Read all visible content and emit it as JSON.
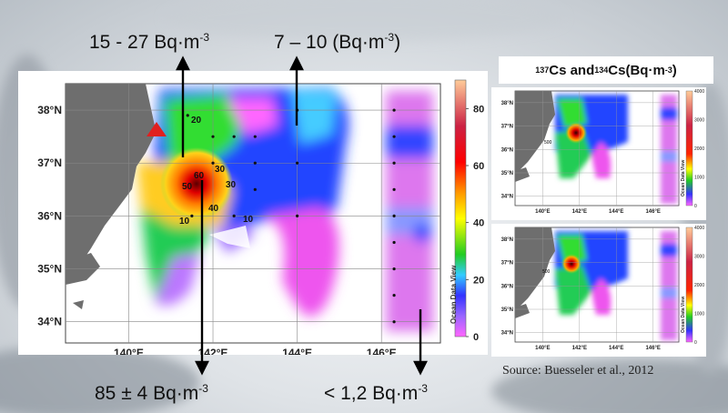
{
  "annotations": {
    "top_left": {
      "value": "15 - 27 Bq·m",
      "exp": "-3"
    },
    "top_right": {
      "value": "7 – 10 (Bq·m",
      "exp": "-3",
      "suffix": ")"
    },
    "bottom_left": {
      "value": "85 ± 4 Bq·m",
      "exp": "-3"
    },
    "bottom_right": {
      "value": "< 1,2 Bq·m",
      "exp": "-3"
    }
  },
  "legend_title": {
    "p1": "137",
    "p2": "Cs and ",
    "p3": "134",
    "p4": "Cs(Bq·m",
    "p5": "-3",
    "p6": ")"
  },
  "source": "Source: Buesseler et al., 2012",
  "colors": {
    "land": "#6e6e6e",
    "marker": "#e02020"
  },
  "chart_data": [
    {
      "type": "heatmap",
      "xlabel": "",
      "ylabel": "",
      "xlim": [
        138.5,
        147.4
      ],
      "ylim": [
        33.6,
        38.5
      ],
      "x_ticks": [
        {
          "v": 140,
          "label": "140°E"
        },
        {
          "v": 142,
          "label": "142°E"
        },
        {
          "v": 144,
          "label": "144°E"
        },
        {
          "v": 146,
          "label": "146°E"
        }
      ],
      "y_ticks": [
        {
          "v": 34,
          "label": "34°N"
        },
        {
          "v": 35,
          "label": "35°N"
        },
        {
          "v": 36,
          "label": "36°N"
        },
        {
          "v": 37,
          "label": "37°N"
        },
        {
          "v": 38,
          "label": "38°N"
        }
      ],
      "colorbar": {
        "label": "Ocean Data View",
        "ticks": [
          0,
          20,
          40,
          60,
          80
        ],
        "range": [
          0,
          90
        ]
      },
      "contour_labels": [
        "20",
        "30",
        "50",
        "60",
        "40",
        "10",
        "30",
        "10"
      ],
      "grid": true
    },
    {
      "type": "heatmap",
      "xlim": [
        138.5,
        147.4
      ],
      "ylim": [
        33.6,
        38.5
      ],
      "x_ticks": [
        "140°E",
        "142°E",
        "144°E",
        "146°E"
      ],
      "y_ticks": [
        "34°N",
        "35°N",
        "36°N",
        "37°N",
        "38°N"
      ],
      "colorbar": {
        "label": "Ocean Data View",
        "ticks": [
          0,
          1000,
          2000,
          3000,
          4000
        ]
      },
      "contour_labels": [
        "500"
      ]
    },
    {
      "type": "heatmap",
      "xlim": [
        138.5,
        147.4
      ],
      "ylim": [
        33.6,
        38.5
      ],
      "x_ticks": [
        "140°E",
        "142°E",
        "144°E",
        "146°E"
      ],
      "y_ticks": [
        "34°N",
        "35°N",
        "36°N",
        "37°N",
        "38°N"
      ],
      "colorbar": {
        "label": "Ocean Data View",
        "ticks": [
          0,
          1000,
          2000,
          3000,
          4000
        ]
      },
      "contour_labels": [
        "500"
      ]
    }
  ]
}
